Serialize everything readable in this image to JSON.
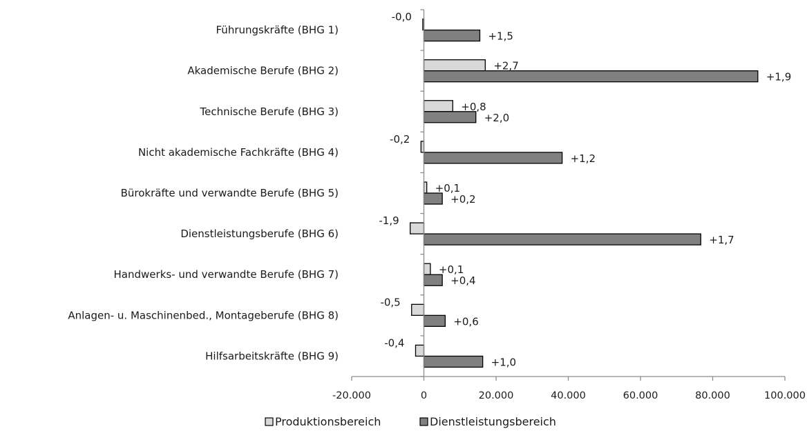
{
  "chart_data": {
    "type": "bar",
    "orientation": "horizontal",
    "categories": [
      "Führungskräfte (BHG 1)",
      "Akademische Berufe (BHG 2)",
      "Technische Berufe (BHG 3)",
      "Nicht akademische Fachkräfte (BHG 4)",
      "Bürokräfte und verwandte Berufe (BHG 5)",
      "Dienstleistungsberufe (BHG 6)",
      "Handwerks- und verwandte Berufe (BHG 7)",
      "Anlagen- u. Maschinenbed., Montageberufe (BHG 8)",
      "Hilfsarbeitskräfte (BHG 9)"
    ],
    "series": [
      {
        "name": "Produktionsbereich",
        "color": "#d9d9d9",
        "values": [
          -300,
          17000,
          8000,
          -800,
          800,
          -3800,
          1800,
          -3400,
          -2300
        ],
        "labels": [
          "-0,0",
          "+2,7",
          "+0,8",
          "-0,2",
          "+0,1",
          "-1,9",
          "+0,1",
          "-0,5",
          "-0,4"
        ]
      },
      {
        "name": "Dienstleistungsbereich",
        "color": "#808080",
        "values": [
          15500,
          92500,
          14400,
          38300,
          5100,
          76700,
          5100,
          5900,
          16300
        ],
        "labels": [
          "+1,5",
          "+1,9",
          "+2,0",
          "+1,2",
          "+0,2",
          "+1,7",
          "+0,4",
          "+0,6",
          "+1,0"
        ]
      }
    ],
    "xlim": [
      -20000,
      100000
    ],
    "xticks": [
      -20000,
      0,
      20000,
      40000,
      60000,
      80000,
      100000
    ],
    "xtick_labels": [
      "-20.000",
      "0",
      "20.000",
      "40.000",
      "60.000",
      "80.000",
      "100.000"
    ],
    "title": "",
    "xlabel": "",
    "ylabel": "",
    "legend_position": "bottom",
    "grid": false
  }
}
